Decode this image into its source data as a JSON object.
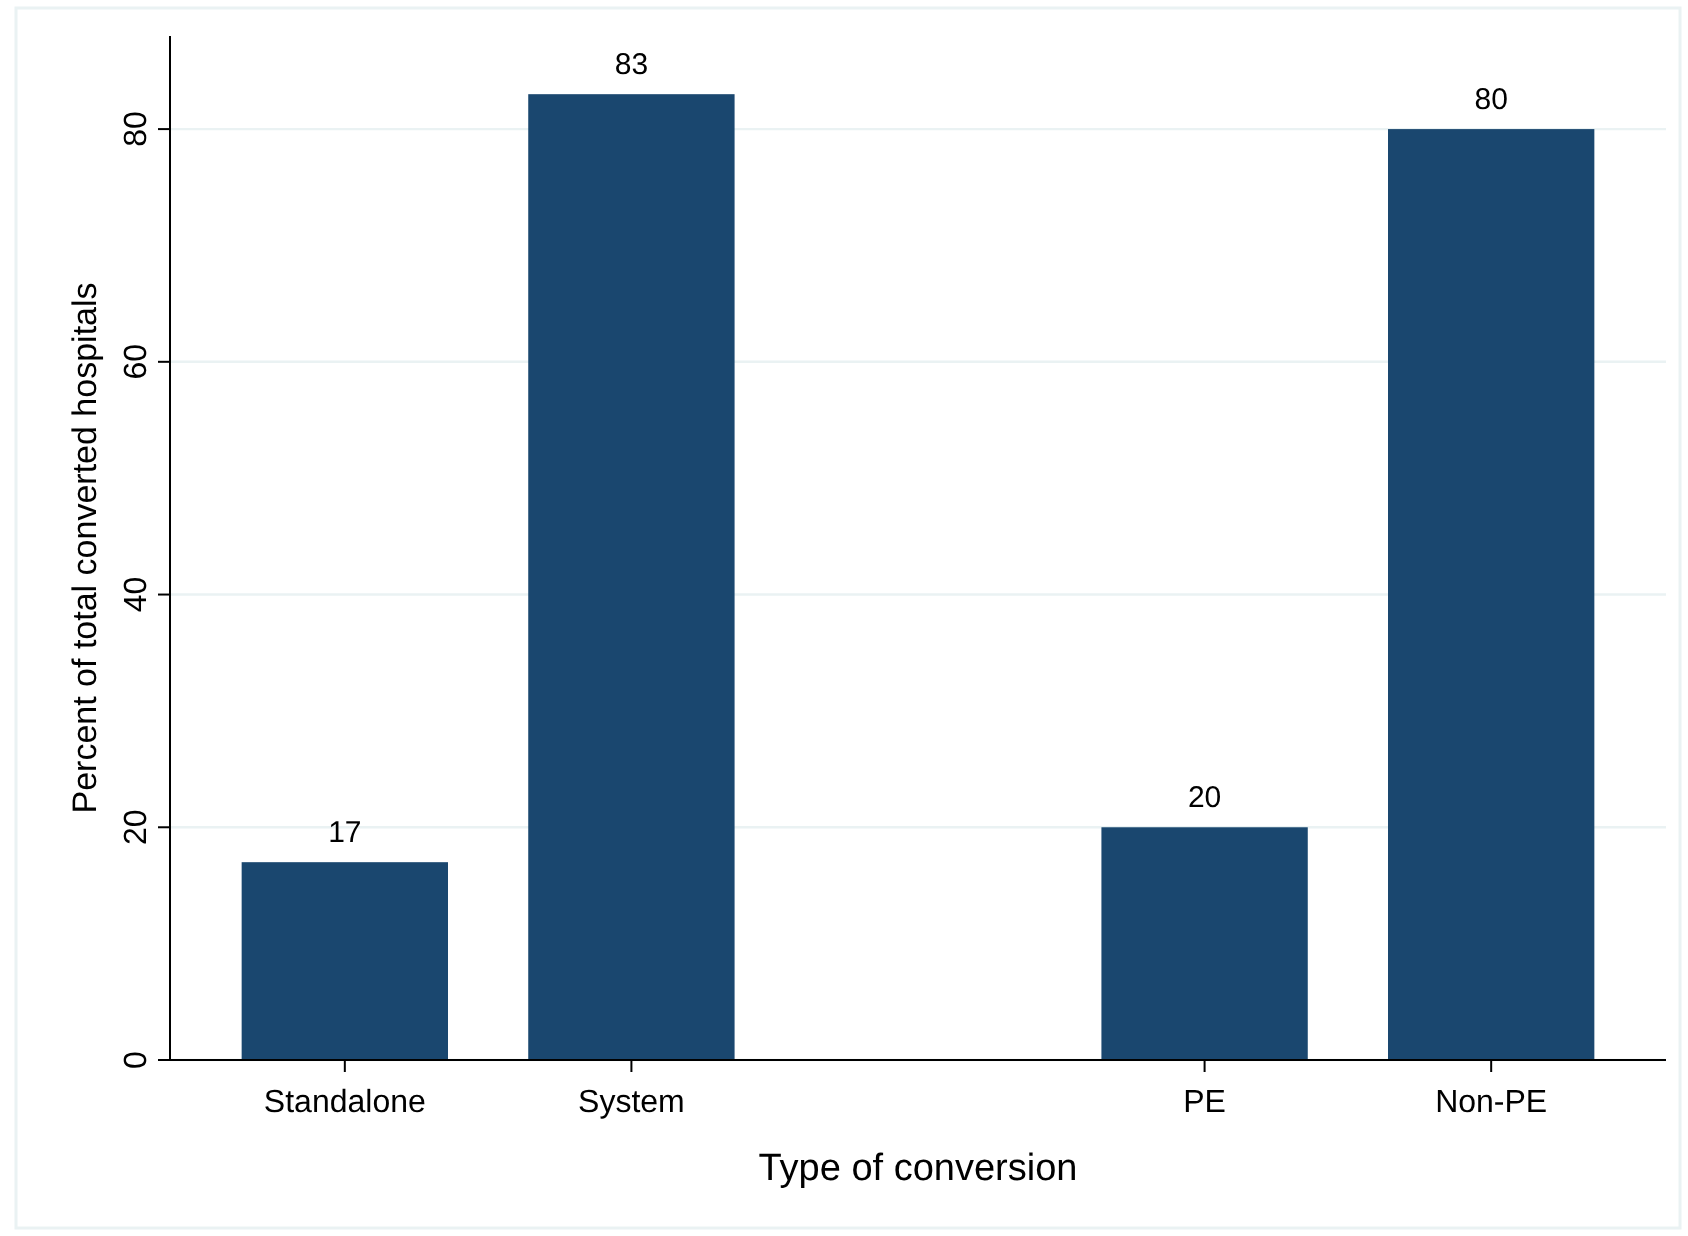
{
  "chart_data": {
    "type": "bar",
    "xlabel": "Type of conversion",
    "ylabel": "Percent of total converted hospitals",
    "categories": [
      "Standalone",
      "System",
      null,
      "PE",
      "Non-PE"
    ],
    "values": [
      17,
      83,
      null,
      20,
      80
    ],
    "color": "#1a476f",
    "ylim": [
      0,
      88
    ],
    "yticks": [
      0,
      20,
      40,
      60,
      80
    ],
    "grid": "y",
    "data_labels": true
  }
}
